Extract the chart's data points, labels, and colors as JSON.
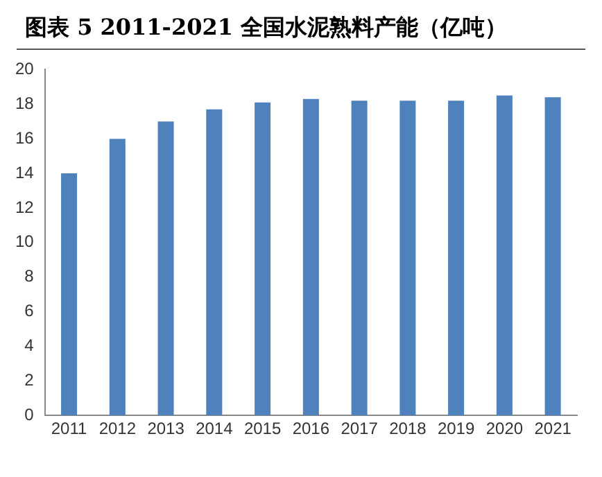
{
  "chart_data": {
    "type": "bar",
    "title": "图表 5 2011-2021 全国水泥熟料产能（亿吨）",
    "categories": [
      "2011",
      "2012",
      "2013",
      "2014",
      "2015",
      "2016",
      "2017",
      "2018",
      "2019",
      "2020",
      "2021"
    ],
    "values": [
      14,
      16,
      17,
      17.7,
      18.1,
      18.3,
      18.2,
      18.2,
      18.2,
      18.5,
      18.4
    ],
    "color": "#4f81bd",
    "ylim": [
      0,
      20
    ],
    "yticks": [
      0,
      2,
      4,
      6,
      8,
      10,
      12,
      14,
      16,
      18,
      20
    ],
    "grid": false,
    "legend": false
  }
}
